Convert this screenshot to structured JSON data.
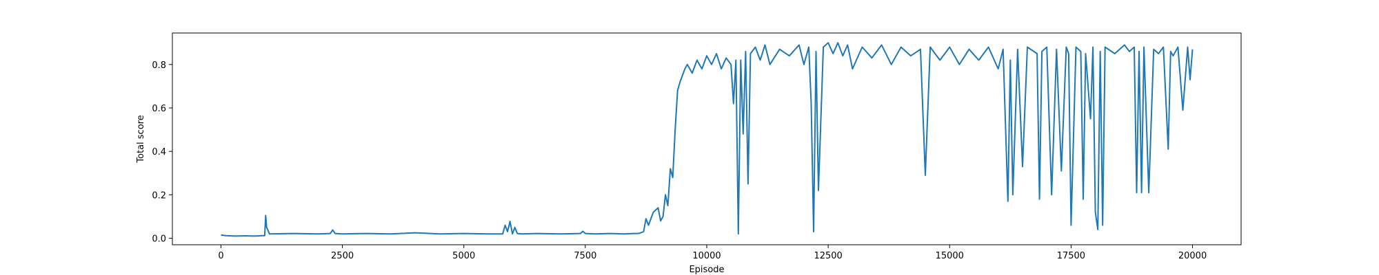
{
  "chart_data": {
    "type": "line",
    "title": "",
    "xlabel": "Episode",
    "ylabel": "Total score",
    "xlim": [
      -1000,
      21000
    ],
    "ylim": [
      -0.03,
      0.945
    ],
    "xticks": [
      0,
      2500,
      5000,
      7500,
      10000,
      12500,
      15000,
      17500,
      20000
    ],
    "xtick_labels": [
      "0",
      "2500",
      "5000",
      "7500",
      "10000",
      "12500",
      "15000",
      "17500",
      "20000"
    ],
    "yticks": [
      0.0,
      0.2,
      0.4,
      0.6,
      0.8
    ],
    "ytick_labels": [
      "0.0",
      "0.2",
      "0.4",
      "0.6",
      "0.8"
    ],
    "grid": false,
    "legend": "none",
    "series": [
      {
        "color": "#1f77b4",
        "x": [
          0,
          100,
          300,
          500,
          700,
          850,
          900,
          920,
          940,
          1000,
          1500,
          2000,
          2250,
          2300,
          2350,
          2500,
          3000,
          3500,
          4000,
          4500,
          5000,
          5500,
          5800,
          5850,
          5900,
          5950,
          6000,
          6050,
          6100,
          6200,
          6500,
          7000,
          7400,
          7450,
          7500,
          7700,
          8000,
          8300,
          8500,
          8600,
          8700,
          8750,
          8800,
          8900,
          9000,
          9050,
          9100,
          9150,
          9200,
          9250,
          9300,
          9350,
          9400,
          9450,
          9500,
          9550,
          9600,
          9700,
          9800,
          9900,
          10000,
          10100,
          10200,
          10300,
          10400,
          10500,
          10550,
          10600,
          10650,
          10700,
          10750,
          10800,
          10850,
          10900,
          11000,
          11100,
          11200,
          11300,
          11500,
          11700,
          11900,
          12000,
          12100,
          12150,
          12200,
          12250,
          12300,
          12400,
          12500,
          12600,
          12700,
          12800,
          12900,
          13000,
          13200,
          13400,
          13600,
          13800,
          14000,
          14200,
          14400,
          14500,
          14600,
          14800,
          15000,
          15200,
          15400,
          15600,
          15800,
          16000,
          16100,
          16200,
          16250,
          16300,
          16400,
          16500,
          16600,
          16800,
          16850,
          16900,
          17000,
          17100,
          17200,
          17300,
          17400,
          17450,
          17500,
          17600,
          17700,
          17750,
          17800,
          17900,
          17950,
          18000,
          18050,
          18100,
          18150,
          18200,
          18400,
          18600,
          18700,
          18800,
          18850,
          18900,
          18950,
          19000,
          19100,
          19200,
          19300,
          19400,
          19500,
          19550,
          19600,
          19700,
          19800,
          19900,
          19950,
          20000
        ],
        "y": [
          0.015,
          0.012,
          0.01,
          0.011,
          0.01,
          0.012,
          0.012,
          0.105,
          0.05,
          0.02,
          0.022,
          0.02,
          0.022,
          0.038,
          0.022,
          0.02,
          0.022,
          0.02,
          0.025,
          0.02,
          0.022,
          0.02,
          0.02,
          0.06,
          0.03,
          0.078,
          0.02,
          0.05,
          0.022,
          0.02,
          0.022,
          0.02,
          0.022,
          0.032,
          0.022,
          0.02,
          0.022,
          0.02,
          0.022,
          0.022,
          0.03,
          0.09,
          0.06,
          0.12,
          0.14,
          0.08,
          0.1,
          0.2,
          0.15,
          0.32,
          0.28,
          0.5,
          0.68,
          0.72,
          0.75,
          0.78,
          0.8,
          0.76,
          0.82,
          0.78,
          0.84,
          0.8,
          0.85,
          0.78,
          0.83,
          0.8,
          0.62,
          0.82,
          0.02,
          0.82,
          0.48,
          0.86,
          0.25,
          0.85,
          0.88,
          0.82,
          0.89,
          0.8,
          0.87,
          0.84,
          0.89,
          0.8,
          0.88,
          0.62,
          0.03,
          0.86,
          0.22,
          0.88,
          0.9,
          0.85,
          0.9,
          0.84,
          0.89,
          0.78,
          0.88,
          0.83,
          0.89,
          0.8,
          0.88,
          0.84,
          0.87,
          0.29,
          0.88,
          0.82,
          0.88,
          0.8,
          0.87,
          0.82,
          0.88,
          0.78,
          0.87,
          0.17,
          0.82,
          0.2,
          0.87,
          0.33,
          0.88,
          0.85,
          0.18,
          0.86,
          0.88,
          0.2,
          0.87,
          0.31,
          0.88,
          0.85,
          0.06,
          0.88,
          0.86,
          0.18,
          0.85,
          0.55,
          0.88,
          0.12,
          0.04,
          0.86,
          0.06,
          0.88,
          0.85,
          0.89,
          0.86,
          0.88,
          0.21,
          0.86,
          0.21,
          0.88,
          0.21,
          0.87,
          0.85,
          0.88,
          0.41,
          0.86,
          0.84,
          0.88,
          0.59,
          0.88,
          0.73,
          0.87
        ]
      }
    ]
  }
}
